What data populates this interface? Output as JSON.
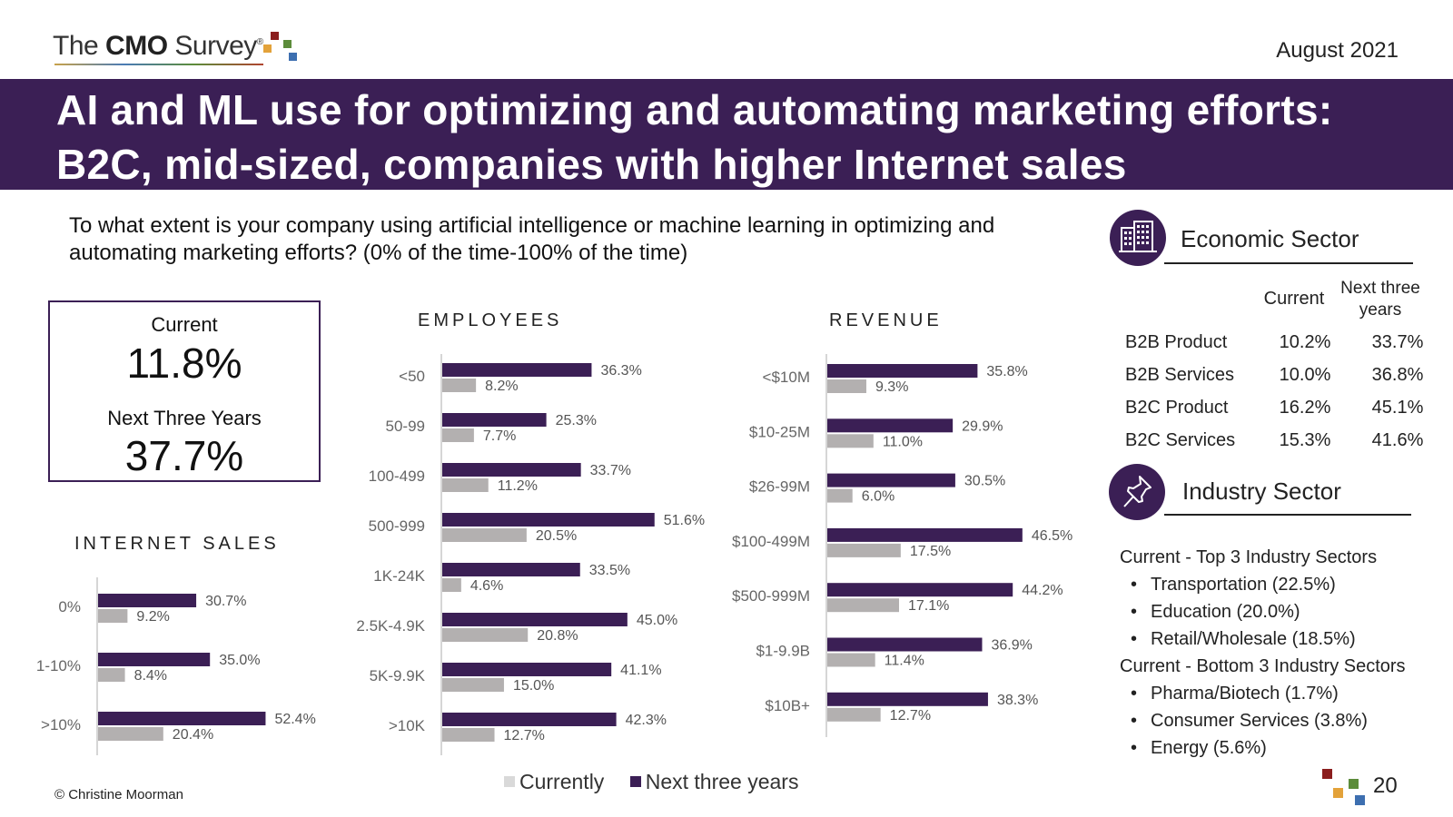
{
  "header": {
    "logo_prefix": "The",
    "logo_bold": "CMO",
    "logo_suffix": "Survey",
    "logo_mark": "®",
    "date": "August 2021",
    "title_line1": "AI and ML use for optimizing and automating marketing efforts:",
    "title_line2": "B2C, mid-sized, companies with higher Internet sales",
    "brand_color": "#3b1f55"
  },
  "question": "To what extent is your company using artificial intelligence or machine learning in optimizing and automating marketing efforts? (0% of the time-100% of the time)",
  "summary": {
    "current_label": "Current",
    "current_value": "11.8%",
    "next_label": "Next Three Years",
    "next_value": "37.7%"
  },
  "chart_data": [
    {
      "type": "bar",
      "orientation": "horizontal",
      "title": "EMPLOYEES",
      "categories": [
        "<50",
        "50-99",
        "100-499",
        "500-999",
        "1K-24K",
        "2.5K-4.9K",
        "5K-9.9K",
        ">10K"
      ],
      "series": [
        {
          "name": "Next three years",
          "color": "#3b1f55",
          "values": [
            36.3,
            25.3,
            33.7,
            51.6,
            33.5,
            45.0,
            41.1,
            42.3
          ]
        },
        {
          "name": "Currently",
          "color": "#b3b0b0",
          "values": [
            8.2,
            7.7,
            11.2,
            20.5,
            4.6,
            20.8,
            15.0,
            12.7
          ]
        }
      ],
      "value_format": "%"
    },
    {
      "type": "bar",
      "orientation": "horizontal",
      "title": "REVENUE",
      "categories": [
        "<$10M",
        "$10-25M",
        "$26-99M",
        "$100-499M",
        "$500-999M",
        "$1-9.9B",
        "$10B+"
      ],
      "series": [
        {
          "name": "Next three years",
          "color": "#3b1f55",
          "values": [
            35.8,
            29.9,
            30.5,
            46.5,
            44.2,
            36.9,
            38.3
          ]
        },
        {
          "name": "Currently",
          "color": "#b3b0b0",
          "values": [
            9.3,
            11.0,
            6.0,
            17.5,
            17.1,
            11.4,
            12.7
          ]
        }
      ],
      "value_format": "%"
    },
    {
      "type": "bar",
      "orientation": "horizontal",
      "title": "INTERNET SALES",
      "categories": [
        "0%",
        "1-10%",
        ">10%"
      ],
      "series": [
        {
          "name": "Next three years",
          "color": "#3b1f55",
          "values": [
            30.7,
            35.0,
            52.4
          ]
        },
        {
          "name": "Currently",
          "color": "#b3b0b0",
          "values": [
            9.2,
            8.4,
            20.4
          ]
        }
      ],
      "value_format": "%"
    }
  ],
  "legend": {
    "currently": "Currently",
    "next": "Next three years",
    "currently_color": "#d9d9d9",
    "next_color": "#3b1f55"
  },
  "economic": {
    "icon": "buildings-icon",
    "title": "Economic Sector",
    "col_current": "Current",
    "col_next_line1": "Next three",
    "col_next_line2": "years",
    "rows": [
      {
        "label": "B2B Product",
        "current": "10.2%",
        "next": "33.7%"
      },
      {
        "label": "B2B Services",
        "current": "10.0%",
        "next": "36.8%"
      },
      {
        "label": "B2C Product",
        "current": "16.2%",
        "next": "45.1%"
      },
      {
        "label": "B2C Services",
        "current": "15.3%",
        "next": "41.6%"
      }
    ]
  },
  "industry": {
    "icon": "pushpin-icon",
    "title": "Industry Sector",
    "top_head": "Current - Top 3 Industry Sectors",
    "top": [
      "Transportation (22.5%)",
      "Education (20.0%)",
      "Retail/Wholesale (18.5%)"
    ],
    "bottom_head": "Current - Bottom 3 Industry Sectors",
    "bottom": [
      "Pharma/Biotech (1.7%)",
      "Consumer Services (3.8%)",
      "Energy (5.6%)"
    ],
    "bullet": "•"
  },
  "footer": {
    "copyright": "© Christine Moorman",
    "page": "20"
  }
}
